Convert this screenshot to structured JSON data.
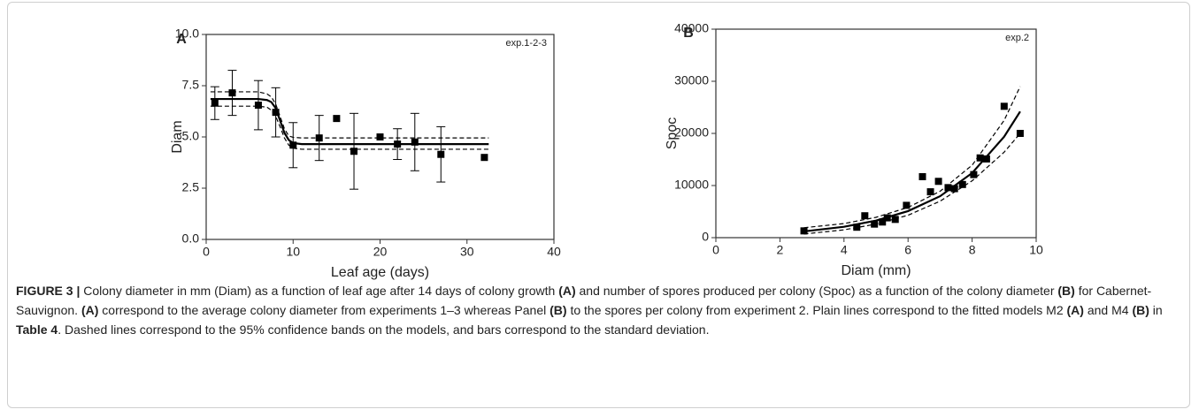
{
  "chart_data": [
    {
      "type": "scatter",
      "panel_label": "A",
      "annotation": "exp.1-2-3",
      "xlabel": "Leaf age (days)",
      "ylabel": "Diam",
      "xlim": [
        0,
        40
      ],
      "xticks": [
        0,
        10,
        20,
        30,
        40
      ],
      "ylim": [
        0,
        10
      ],
      "yticks": [
        {
          "value": 0,
          "label": "0.0"
        },
        {
          "value": 2.5,
          "label": "2.5"
        },
        {
          "value": 5,
          "label": "5.0"
        },
        {
          "value": 7.5,
          "label": "7.5"
        },
        {
          "value": 10,
          "label": "10.0"
        }
      ],
      "series": [
        {
          "kind": "scatter",
          "color": "#000000",
          "x": [
            1,
            3,
            6,
            8,
            10,
            13,
            15,
            17,
            20,
            22,
            24,
            27,
            32
          ],
          "values": [
            6.65,
            7.15,
            6.55,
            6.2,
            4.6,
            4.95,
            5.9,
            4.3,
            5.0,
            4.65,
            4.75,
            4.15,
            4.0
          ],
          "errors": [
            0.8,
            1.1,
            1.2,
            1.2,
            1.1,
            1.1,
            null,
            1.85,
            null,
            0.75,
            1.4,
            1.35,
            null
          ]
        },
        {
          "kind": "line",
          "dash": false,
          "color": "#000000",
          "x": [
            0.5,
            6,
            7,
            7.5,
            8,
            8.5,
            9,
            9.5,
            10,
            11,
            32.5
          ],
          "values": [
            6.85,
            6.85,
            6.8,
            6.7,
            6.4,
            5.8,
            5.2,
            4.85,
            4.7,
            4.65,
            4.65
          ]
        },
        {
          "kind": "line",
          "dash": true,
          "color": "#000000",
          "x": [
            0.5,
            6,
            7,
            7.5,
            8,
            8.5,
            9,
            9.5,
            10,
            11,
            32.5
          ],
          "values": [
            7.2,
            7.2,
            7.1,
            6.95,
            6.6,
            6.0,
            5.4,
            5.05,
            4.98,
            4.95,
            4.95
          ]
        },
        {
          "kind": "line",
          "dash": true,
          "color": "#000000",
          "x": [
            0.5,
            6,
            7,
            7.5,
            8,
            8.5,
            9,
            9.5,
            10,
            11,
            32.5
          ],
          "values": [
            6.5,
            6.5,
            6.45,
            6.3,
            6.0,
            5.5,
            4.95,
            4.6,
            4.45,
            4.4,
            4.4
          ]
        }
      ]
    },
    {
      "type": "scatter",
      "panel_label": "B",
      "annotation": "exp.2",
      "xlabel": "Diam (mm)",
      "ylabel": "Spoc",
      "xlim": [
        0,
        10
      ],
      "xticks": [
        0,
        2,
        4,
        6,
        8,
        10
      ],
      "ylim": [
        0,
        40000
      ],
      "yticks": [
        0,
        10000,
        20000,
        30000,
        40000
      ],
      "series": [
        {
          "kind": "scatter",
          "color": "#000000",
          "x": [
            2.75,
            4.4,
            4.65,
            4.95,
            5.2,
            5.35,
            5.6,
            5.95,
            6.45,
            6.7,
            6.95,
            7.25,
            7.45,
            7.7,
            8.05,
            8.25,
            8.45,
            9.0,
            9.5
          ],
          "values": [
            1300,
            2000,
            4200,
            2600,
            3000,
            3800,
            3500,
            6200,
            11700,
            8800,
            10800,
            9600,
            9400,
            10200,
            12100,
            15300,
            15100,
            25200,
            20000
          ]
        },
        {
          "kind": "line",
          "dash": false,
          "color": "#000000",
          "x": [
            2.75,
            4,
            5,
            6,
            7,
            8,
            9,
            9.5
          ],
          "values": [
            1200,
            2090,
            3270,
            5100,
            7950,
            12400,
            19370,
            24200
          ]
        },
        {
          "kind": "line",
          "dash": true,
          "color": "#000000",
          "x": [
            2.75,
            4,
            5,
            6,
            7,
            8,
            9,
            9.5
          ],
          "values": [
            1900,
            2700,
            3900,
            5800,
            8900,
            13900,
            22500,
            29000
          ]
        },
        {
          "kind": "line",
          "dash": true,
          "color": "#000000",
          "x": [
            2.75,
            4,
            5,
            6,
            7,
            8,
            9,
            9.5
          ],
          "values": [
            700,
            1500,
            2600,
            4300,
            7000,
            10900,
            16400,
            20000
          ]
        }
      ]
    }
  ],
  "caption": [
    {
      "text": "FIGURE 3 |",
      "bold": true
    },
    {
      "text": " Colony diameter in mm (Diam) as a function of leaf age after 14 days of colony growth ",
      "bold": false
    },
    {
      "text": "(A)",
      "bold": true
    },
    {
      "text": " and number of spores produced per colony (Spoc) as a function of the colony diameter ",
      "bold": false
    },
    {
      "text": "(B)",
      "bold": true
    },
    {
      "text": " for Cabernet-Sauvignon. ",
      "bold": false
    },
    {
      "text": "(A)",
      "bold": true
    },
    {
      "text": " correspond to the average colony diameter from experiments 1–3 whereas Panel ",
      "bold": false
    },
    {
      "text": "(B)",
      "bold": true
    },
    {
      "text": " to the spores per colony from experiment 2. Plain lines correspond to the fitted models M2 ",
      "bold": false
    },
    {
      "text": "(A)",
      "bold": true
    },
    {
      "text": " and M4 ",
      "bold": false
    },
    {
      "text": "(B)",
      "bold": true
    },
    {
      "text": " in ",
      "bold": false
    },
    {
      "text": "Table 4",
      "bold": true
    },
    {
      "text": ". Dashed lines correspond to the 95% confidence bands on the models, and bars correspond to the standard deviation.",
      "bold": false
    }
  ]
}
